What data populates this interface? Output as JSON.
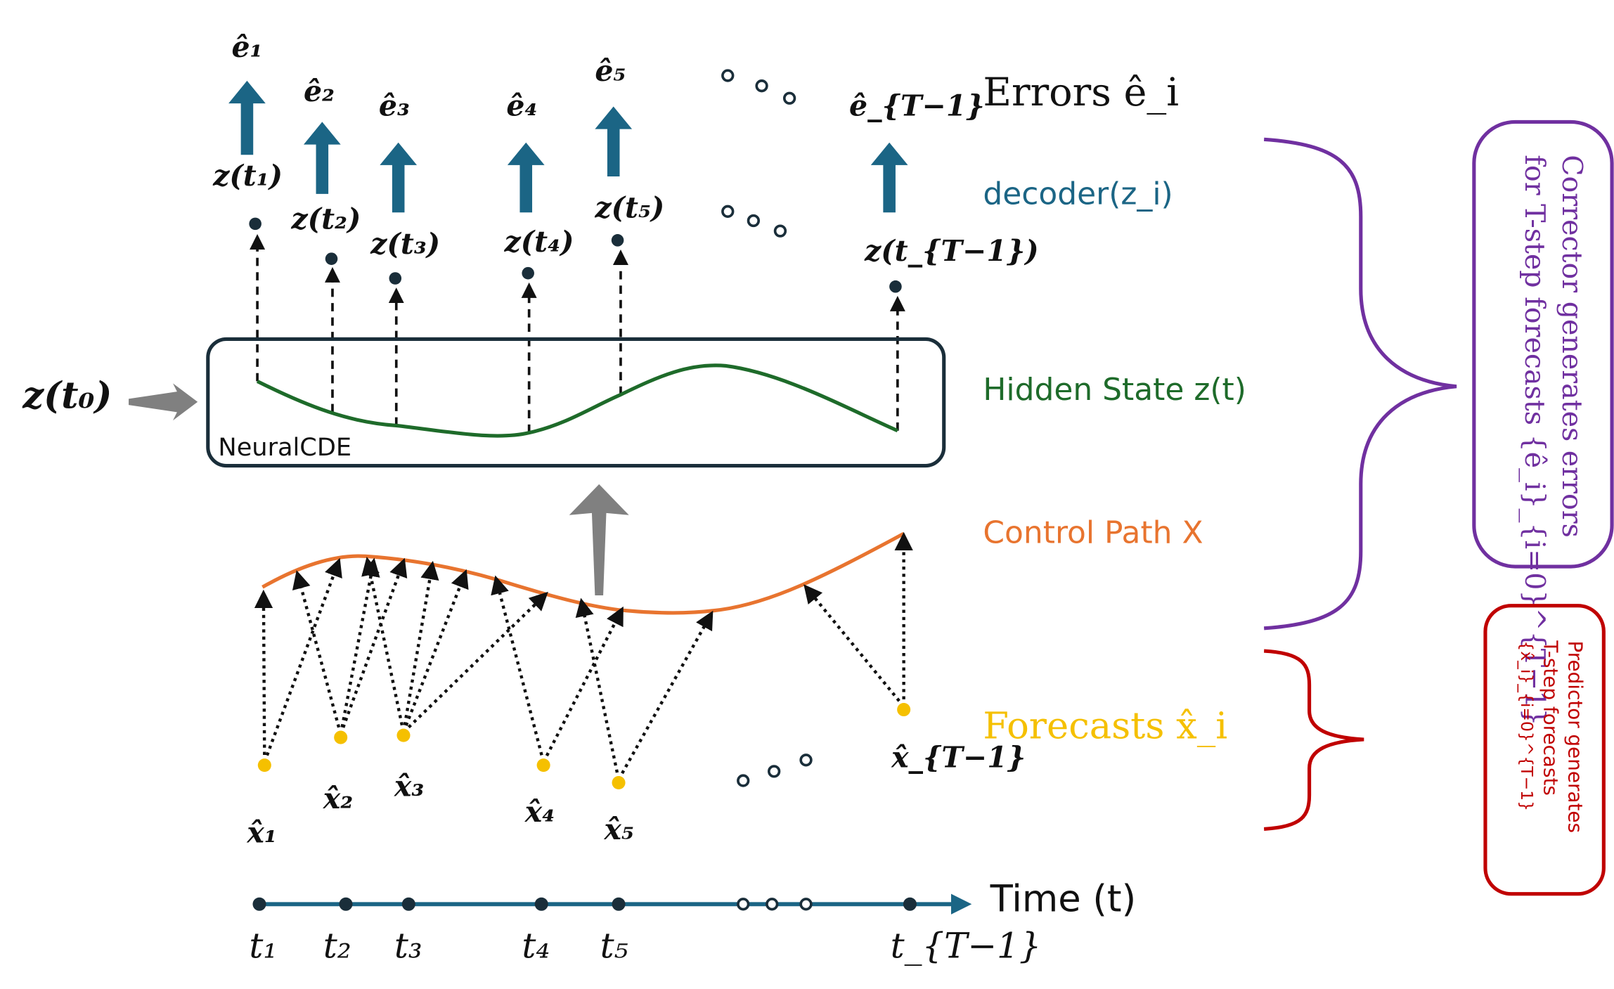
{
  "colors": {
    "error_arrow": "#1b6585",
    "hidden": "#1e6b2a",
    "control": "#e8742f",
    "forecast": "#f5c000",
    "corrector": "#7030a0",
    "predictor": "#c00000",
    "time_axis": "#1b6585",
    "box": "#1a2e3a",
    "gray": "#808080"
  },
  "errors": {
    "items": [
      "ê₁",
      "ê₂",
      "ê₃",
      "ê₄",
      "ê₅",
      "ê_{T−1}"
    ],
    "legend": "Errors ê_i"
  },
  "decoder": {
    "items": [
      "z(t₁)",
      "z(t₂)",
      "z(t₃)",
      "z(t₄)",
      "z(t₅)",
      "z(t_{T−1})"
    ],
    "legend": "decoder(z_i)"
  },
  "hidden": {
    "init": "z(t₀)",
    "box_label": "NeuralCDE",
    "legend": "Hidden State z(t)"
  },
  "control": {
    "legend": "Control Path X"
  },
  "forecasts": {
    "items": [
      "x̂₁",
      "x̂₂",
      "x̂₃",
      "x̂₄",
      "x̂₅",
      "x̂_{T−1}"
    ],
    "legend": "Forecasts x̂_i"
  },
  "time": {
    "label": "Time (t)",
    "ticks": [
      "t₁",
      "t₂",
      "t₃",
      "t₄",
      "t₅",
      "t_{T−1}"
    ]
  },
  "corrector": {
    "line1": "Corrector generates errors",
    "line2": "for T-step forecasts {ê_i}_{i=0}^{T−1}"
  },
  "predictor": {
    "line1": "Predictor generates",
    "line2": "T-step forecasts",
    "line3": "{x̂_i}_{i=0}^{T−1}"
  }
}
